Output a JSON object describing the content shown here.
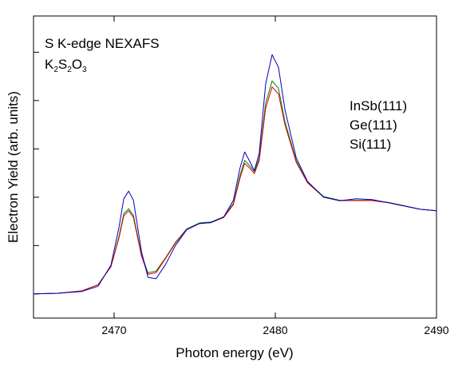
{
  "chart_data": {
    "type": "line",
    "title": "S K-edge NEXAFS",
    "subtitle_parts": {
      "main": [
        "K",
        "S",
        "O"
      ],
      "subs": [
        "2",
        "2",
        "3"
      ]
    },
    "xlabel": "Photon energy (eV)",
    "ylabel": "Electron Yield (arb. units)",
    "xlim": [
      2465,
      2490
    ],
    "ylim": [
      0,
      1
    ],
    "x_ticks": [
      2470,
      2480,
      2490
    ],
    "x_tick_labels": [
      "2470",
      "2480",
      "2490"
    ],
    "y_tick_values": [
      0.08,
      0.24,
      0.4,
      0.56,
      0.72,
      0.88
    ],
    "grid": false,
    "legend_position": "right",
    "series": [
      {
        "name": "InSb(111)",
        "color": "#008000",
        "points": [
          [
            2465,
            0.08
          ],
          [
            2466.5,
            0.082
          ],
          [
            2468,
            0.09
          ],
          [
            2469,
            0.11
          ],
          [
            2469.8,
            0.17
          ],
          [
            2470.3,
            0.27
          ],
          [
            2470.6,
            0.345
          ],
          [
            2470.9,
            0.362
          ],
          [
            2471.2,
            0.34
          ],
          [
            2471.7,
            0.21
          ],
          [
            2472.1,
            0.15
          ],
          [
            2472.6,
            0.155
          ],
          [
            2473.2,
            0.2
          ],
          [
            2473.8,
            0.25
          ],
          [
            2474.5,
            0.295
          ],
          [
            2475.3,
            0.315
          ],
          [
            2476.0,
            0.318
          ],
          [
            2476.8,
            0.335
          ],
          [
            2477.4,
            0.38
          ],
          [
            2477.8,
            0.47
          ],
          [
            2478.1,
            0.522
          ],
          [
            2478.4,
            0.505
          ],
          [
            2478.7,
            0.485
          ],
          [
            2479.0,
            0.53
          ],
          [
            2479.4,
            0.71
          ],
          [
            2479.8,
            0.785
          ],
          [
            2480.2,
            0.76
          ],
          [
            2480.6,
            0.65
          ],
          [
            2481.3,
            0.52
          ],
          [
            2482.0,
            0.45
          ],
          [
            2483.0,
            0.402
          ],
          [
            2484.0,
            0.39
          ],
          [
            2485.0,
            0.39
          ],
          [
            2486.0,
            0.39
          ],
          [
            2487.0,
            0.383
          ],
          [
            2488.0,
            0.372
          ],
          [
            2489.0,
            0.36
          ],
          [
            2490,
            0.355
          ]
        ]
      },
      {
        "name": "Ge(111)",
        "color": "#e00000",
        "points": [
          [
            2465,
            0.08
          ],
          [
            2466.5,
            0.082
          ],
          [
            2468,
            0.09
          ],
          [
            2469,
            0.11
          ],
          [
            2469.8,
            0.17
          ],
          [
            2470.3,
            0.265
          ],
          [
            2470.6,
            0.338
          ],
          [
            2470.9,
            0.355
          ],
          [
            2471.2,
            0.333
          ],
          [
            2471.7,
            0.205
          ],
          [
            2472.1,
            0.145
          ],
          [
            2472.6,
            0.15
          ],
          [
            2473.2,
            0.198
          ],
          [
            2473.8,
            0.248
          ],
          [
            2474.5,
            0.293
          ],
          [
            2475.3,
            0.313
          ],
          [
            2476.0,
            0.316
          ],
          [
            2476.8,
            0.333
          ],
          [
            2477.4,
            0.376
          ],
          [
            2477.8,
            0.462
          ],
          [
            2478.1,
            0.512
          ],
          [
            2478.4,
            0.497
          ],
          [
            2478.7,
            0.478
          ],
          [
            2479.0,
            0.52
          ],
          [
            2479.4,
            0.695
          ],
          [
            2479.8,
            0.765
          ],
          [
            2480.2,
            0.742
          ],
          [
            2480.6,
            0.64
          ],
          [
            2481.3,
            0.515
          ],
          [
            2482.0,
            0.448
          ],
          [
            2483.0,
            0.4
          ],
          [
            2484.0,
            0.389
          ],
          [
            2485.0,
            0.389
          ],
          [
            2486.0,
            0.389
          ],
          [
            2487.0,
            0.382
          ],
          [
            2488.0,
            0.371
          ],
          [
            2489.0,
            0.36
          ],
          [
            2490,
            0.355
          ]
        ]
      },
      {
        "name": "Si(111)",
        "color": "#0000c0",
        "points": [
          [
            2465,
            0.08
          ],
          [
            2466.5,
            0.082
          ],
          [
            2468,
            0.088
          ],
          [
            2469,
            0.105
          ],
          [
            2469.8,
            0.175
          ],
          [
            2470.3,
            0.3
          ],
          [
            2470.6,
            0.395
          ],
          [
            2470.9,
            0.42
          ],
          [
            2471.2,
            0.39
          ],
          [
            2471.7,
            0.22
          ],
          [
            2472.1,
            0.135
          ],
          [
            2472.6,
            0.13
          ],
          [
            2473.2,
            0.178
          ],
          [
            2473.8,
            0.24
          ],
          [
            2474.5,
            0.292
          ],
          [
            2475.3,
            0.313
          ],
          [
            2476.0,
            0.316
          ],
          [
            2476.8,
            0.335
          ],
          [
            2477.4,
            0.39
          ],
          [
            2477.8,
            0.495
          ],
          [
            2478.1,
            0.55
          ],
          [
            2478.4,
            0.52
          ],
          [
            2478.7,
            0.488
          ],
          [
            2479.0,
            0.545
          ],
          [
            2479.4,
            0.775
          ],
          [
            2479.8,
            0.872
          ],
          [
            2480.2,
            0.83
          ],
          [
            2480.6,
            0.69
          ],
          [
            2481.3,
            0.53
          ],
          [
            2482.0,
            0.452
          ],
          [
            2483.0,
            0.4
          ],
          [
            2484.0,
            0.388
          ],
          [
            2485.0,
            0.395
          ],
          [
            2486.0,
            0.392
          ],
          [
            2487.0,
            0.382
          ],
          [
            2488.0,
            0.371
          ],
          [
            2489.0,
            0.36
          ],
          [
            2490,
            0.355
          ]
        ]
      }
    ]
  }
}
